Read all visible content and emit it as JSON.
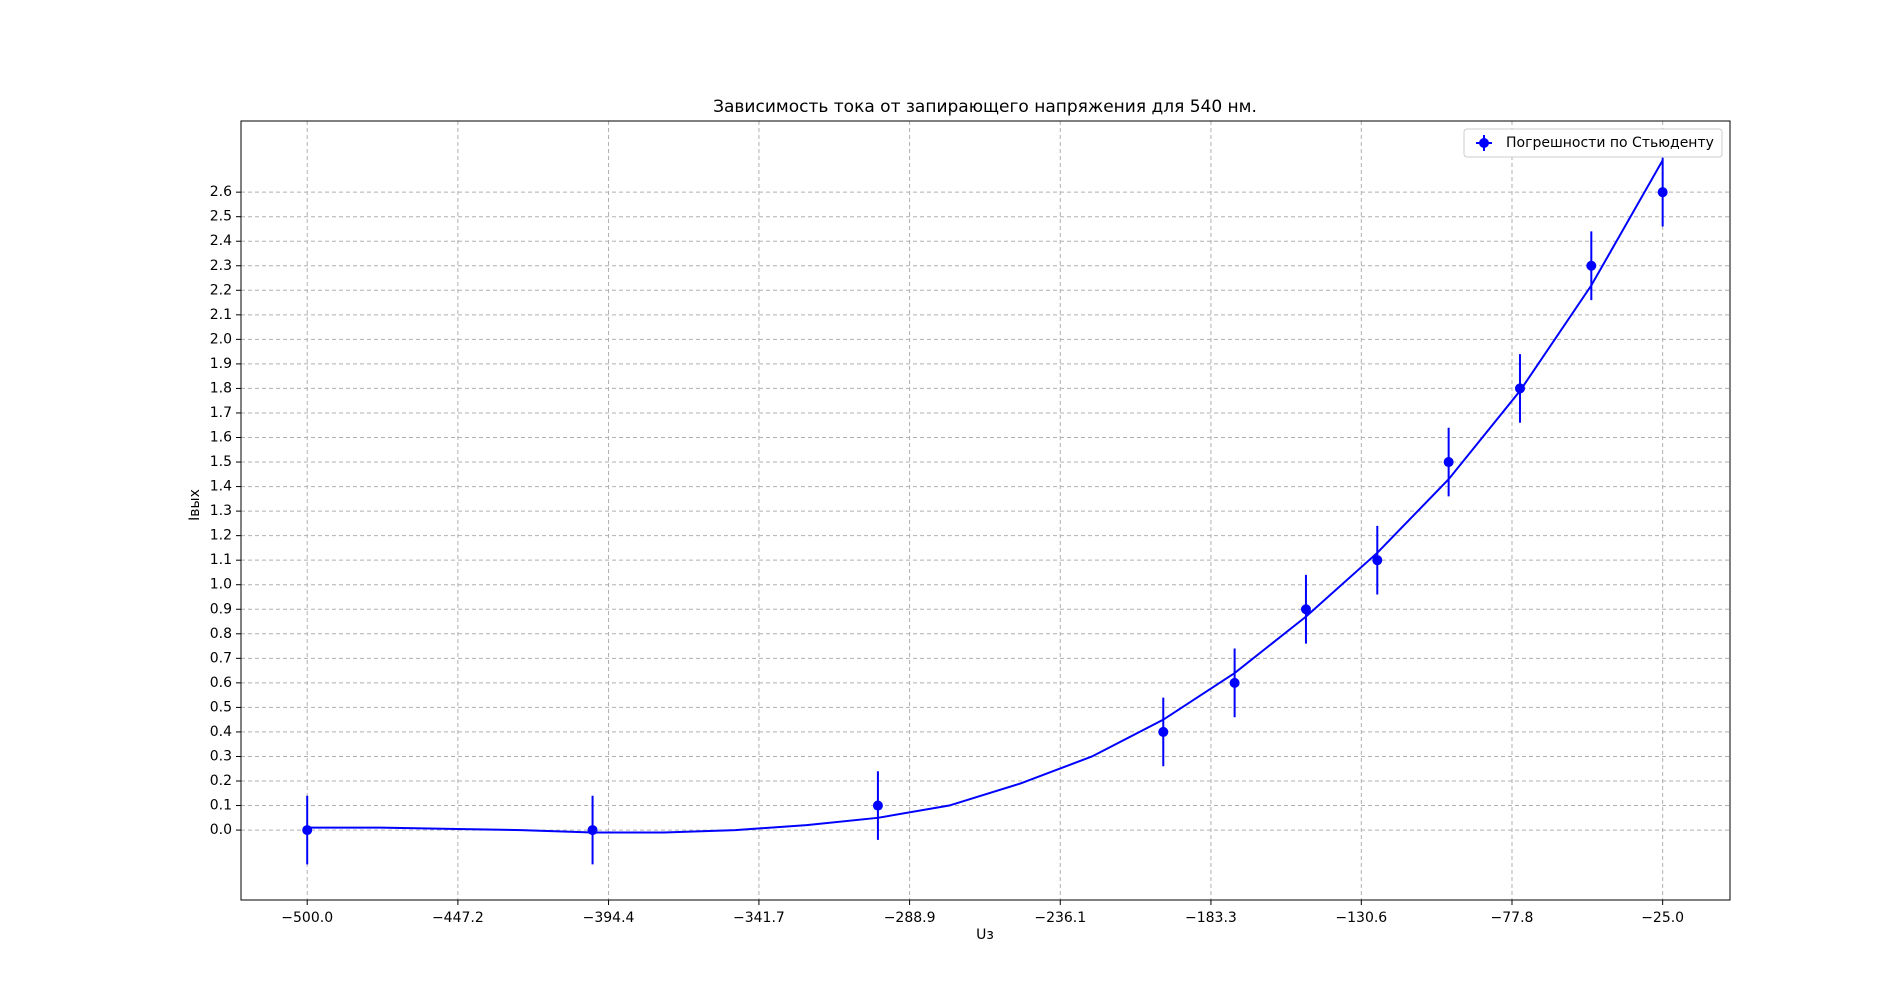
{
  "chart_data": {
    "type": "scatter",
    "title": "Зависимость тока от запирающего напряжения для 540 нм.",
    "x_label": "Uз",
    "y_label": "Iвых",
    "xlim": [
      -523.2,
      -1.4
    ],
    "ylim": [
      -0.285,
      2.89
    ],
    "xticks": [
      {
        "value": -500.0,
        "label": "−500.0"
      },
      {
        "value": -447.2,
        "label": "−447.2"
      },
      {
        "value": -394.4,
        "label": "−394.4"
      },
      {
        "value": -341.7,
        "label": "−341.7"
      },
      {
        "value": -288.9,
        "label": "−288.9"
      },
      {
        "value": -236.1,
        "label": "−236.1"
      },
      {
        "value": -183.3,
        "label": "−183.3"
      },
      {
        "value": -130.6,
        "label": "−130.6"
      },
      {
        "value": -77.8,
        "label": "−77.8"
      },
      {
        "value": -25.0,
        "label": "−25.0"
      }
    ],
    "yticks": [
      {
        "value": 0,
        "label": "0.0"
      },
      0.1,
      0.2,
      0.3,
      0.4,
      0.5,
      0.6,
      0.7,
      0.8,
      0.9,
      {
        "value": 1,
        "label": "1.0"
      },
      1.1,
      1.2,
      1.3,
      1.4,
      1.5,
      1.6,
      1.7,
      1.8,
      1.9,
      {
        "value": 2,
        "label": "2.0"
      },
      2.1,
      2.2,
      2.3,
      2.4,
      2.5,
      2.6
    ],
    "grid": true,
    "legend": "upper right",
    "series": [
      {
        "name": "Погрешности по Стьюденту",
        "color": "#0000ff",
        "x": [
          -500,
          -400,
          -300,
          -200,
          -175,
          -150,
          -125,
          -100,
          -75,
          -50,
          -25
        ],
        "values": [
          0,
          0,
          0.1,
          0.4,
          0.6,
          0.9,
          1.1,
          1.5,
          1.8,
          2.3,
          2.6
        ],
        "yerr": [
          0.14,
          0.14,
          0.14,
          0.14,
          0.14,
          0.14,
          0.14,
          0.14,
          0.14,
          0.14,
          0.14
        ]
      }
    ],
    "fit": {
      "color": "#0000ff",
      "x": [
        -500,
        -475,
        -450,
        -425,
        -400,
        -375,
        -350,
        -325,
        -300,
        -275,
        -250,
        -225,
        -200,
        -175,
        -150,
        -125,
        -100,
        -75,
        -50,
        -25
      ],
      "values": [
        0.01,
        0.01,
        0.005,
        0.0,
        -0.01,
        -0.01,
        0.0,
        0.02,
        0.05,
        0.1,
        0.19,
        0.3,
        0.45,
        0.64,
        0.87,
        1.13,
        1.43,
        1.79,
        2.22,
        2.73
      ]
    }
  }
}
